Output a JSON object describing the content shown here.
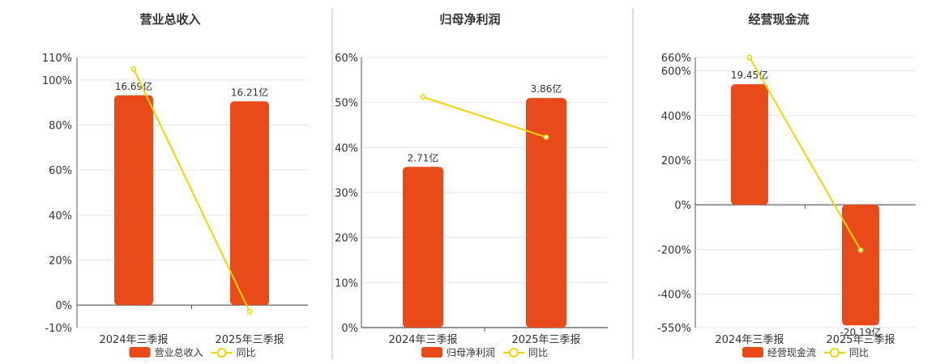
{
  "colors": {
    "bar": "#e84a19",
    "line": "#f2d400",
    "grid": "#e5e5e5",
    "axis": "#555555",
    "text": "#333333",
    "divider": "#bbbbbb"
  },
  "chart_data": [
    {
      "type": "bar",
      "title": "营业总收入",
      "categories": [
        "2024年三季报",
        "2025年三季报"
      ],
      "series": [
        {
          "name": "营业总收入",
          "type": "bar",
          "values": [
            16.69,
            16.21
          ],
          "labels": [
            "16.69亿",
            "16.21亿"
          ]
        },
        {
          "name": "同比",
          "type": "line",
          "values": [
            104.8,
            -2.9
          ]
        }
      ],
      "ylim": [
        -10,
        110
      ],
      "yticks": [
        "110%",
        "100%",
        "80%",
        "60%",
        "40%",
        "20%",
        "0%",
        "-10%"
      ],
      "ytick_values": [
        110,
        100,
        80,
        60,
        40,
        20,
        0,
        -10
      ],
      "bar_yoy_equiv": [
        93.2,
        90.5
      ],
      "legend": "bottom-center",
      "grid": true
    },
    {
      "type": "bar",
      "title": "归母净利润",
      "categories": [
        "2024年三季报",
        "2025年三季报"
      ],
      "series": [
        {
          "name": "归母净利润",
          "type": "bar",
          "values": [
            2.71,
            3.86
          ],
          "labels": [
            "2.71亿",
            "3.86亿"
          ]
        },
        {
          "name": "同比",
          "type": "line",
          "values": [
            51.2,
            42.3
          ]
        }
      ],
      "ylim": [
        0,
        60
      ],
      "yticks": [
        "60%",
        "50%",
        "40%",
        "30%",
        "20%",
        "10%",
        "0%"
      ],
      "ytick_values": [
        60,
        50,
        40,
        30,
        20,
        10,
        0
      ],
      "bar_yoy_equiv": [
        35.7,
        51.0
      ],
      "legend": "bottom-center",
      "grid": true
    },
    {
      "type": "bar",
      "title": "经营现金流",
      "categories": [
        "2024年三季报",
        "2025年三季报"
      ],
      "series": [
        {
          "name": "经营现金流",
          "type": "bar",
          "values": [
            19.45,
            -20.19
          ],
          "labels": [
            "19.45亿",
            "-20.19亿"
          ]
        },
        {
          "name": "同比",
          "type": "line",
          "values": [
            660,
            -203
          ]
        }
      ],
      "ylim": [
        -550,
        660
      ],
      "yticks": [
        "660%",
        "600%",
        "400%",
        "200%",
        "0%",
        "-200%",
        "-400%",
        "-550%"
      ],
      "ytick_values": [
        660,
        600,
        400,
        200,
        0,
        -200,
        -400,
        -550
      ],
      "bar_yoy_equiv": [
        540,
        -540
      ],
      "legend": "bottom-center",
      "grid": true
    }
  ]
}
